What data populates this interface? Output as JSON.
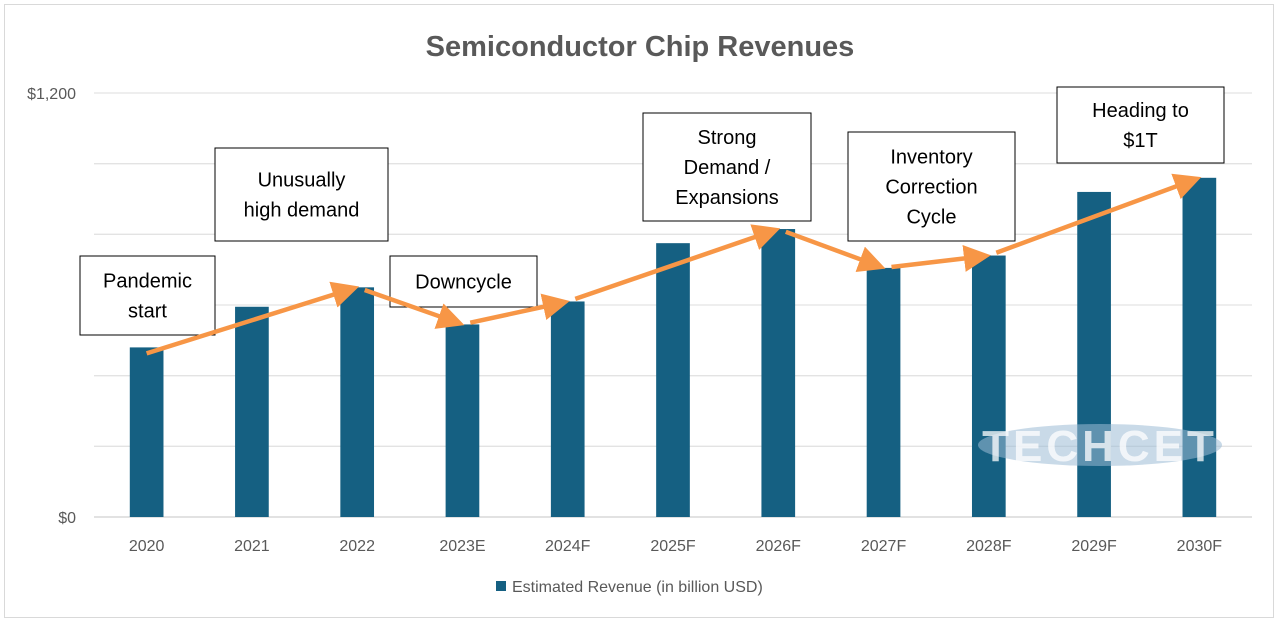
{
  "chart_data": {
    "type": "bar",
    "title": "Semiconductor Chip Revenues",
    "xlabel": "",
    "ylabel": "",
    "ylim": [
      0,
      1200
    ],
    "y_gridlines": [
      0,
      200,
      400,
      600,
      800,
      1000,
      1200
    ],
    "y_tick_labels": [
      {
        "value": 0,
        "label": "$0"
      },
      {
        "value": 1200,
        "label": "$1,200"
      }
    ],
    "grid": true,
    "categories": [
      "2020",
      "2021",
      "2022",
      "2023E",
      "2024F",
      "2025F",
      "2026F",
      "2027F",
      "2028F",
      "2029F",
      "2030F"
    ],
    "series": [
      {
        "name": "Estimated Revenue (in billion USD)",
        "color": "#156082",
        "values": [
          480,
          595,
          650,
          545,
          610,
          775,
          815,
          705,
          740,
          920,
          960
        ]
      }
    ],
    "trend_arrow_color": "#F79646",
    "legend": {
      "position": "bottom",
      "entries": [
        "Estimated Revenue (in billion USD)"
      ]
    },
    "annotations": [
      {
        "lines": [
          "Pandemic",
          "start"
        ],
        "category": "2020"
      },
      {
        "lines": [
          "Unusually",
          "high demand"
        ],
        "category": "2021"
      },
      {
        "lines": [
          "Downcycle"
        ],
        "category": "2023E"
      },
      {
        "lines": [
          "Strong",
          "Demand /",
          "Expansions"
        ],
        "category": "2025F"
      },
      {
        "lines": [
          "Inventory",
          "Correction",
          "Cycle"
        ],
        "category": "2027F"
      },
      {
        "lines": [
          "Heading to",
          "$1T"
        ],
        "category": "2030F"
      }
    ],
    "watermark": "TECHCET"
  }
}
